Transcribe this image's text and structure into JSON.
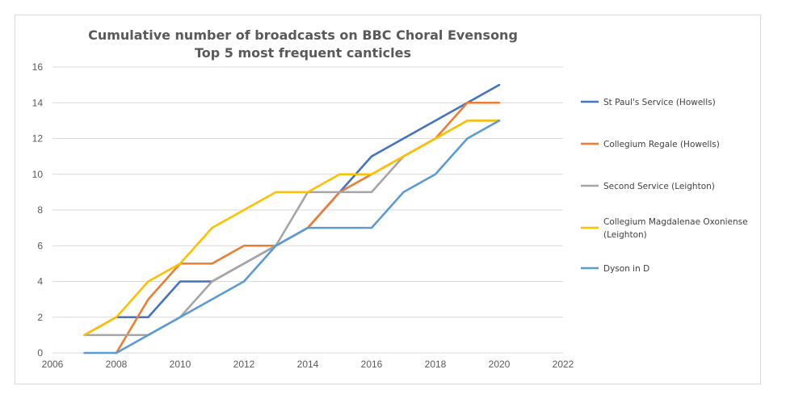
{
  "chart_data": {
    "type": "line",
    "title": "Cumulative number of broadcasts on BBC Choral Evensong",
    "subtitle": "Top 5 most frequent canticles",
    "xlabel": "",
    "ylabel": "",
    "xlim": [
      2006,
      2022
    ],
    "ylim": [
      0,
      16
    ],
    "x_ticks": [
      2006,
      2008,
      2010,
      2012,
      2014,
      2016,
      2018,
      2020,
      2022
    ],
    "y_ticks": [
      0,
      2,
      4,
      6,
      8,
      10,
      12,
      14,
      16
    ],
    "grid": "horizontal",
    "legend_position": "right",
    "x": [
      2007,
      2008,
      2009,
      2010,
      2011,
      2012,
      2013,
      2014,
      2015,
      2016,
      2017,
      2018,
      2019,
      2020
    ],
    "series": [
      {
        "name": "St Paul's Service (Howells)",
        "color": "#4472c4",
        "values": [
          1,
          2,
          2,
          4,
          4,
          5,
          6,
          7,
          9,
          11,
          12,
          13,
          14,
          15
        ]
      },
      {
        "name": "Collegium Regale (Howells)",
        "color": "#ed7d31",
        "values": [
          null,
          0,
          3,
          5,
          5,
          6,
          6,
          7,
          9,
          10,
          11,
          12,
          14,
          14
        ]
      },
      {
        "name": "Second Service (Leighton)",
        "color": "#a5a5a5",
        "values": [
          1,
          1,
          1,
          2,
          4,
          5,
          6,
          9,
          9,
          9,
          11,
          12,
          13,
          13
        ]
      },
      {
        "name": "Collegium Magdalenae Oxoniense (Leighton)",
        "color": "#ffc000",
        "values": [
          1,
          2,
          4,
          5,
          7,
          8,
          9,
          9,
          10,
          10,
          11,
          12,
          13,
          13
        ]
      },
      {
        "name": "Dyson in D",
        "color": "#5b9bd5",
        "values": [
          0,
          0,
          1,
          2,
          3,
          4,
          6,
          7,
          7,
          7,
          9,
          10,
          12,
          13
        ]
      }
    ]
  }
}
